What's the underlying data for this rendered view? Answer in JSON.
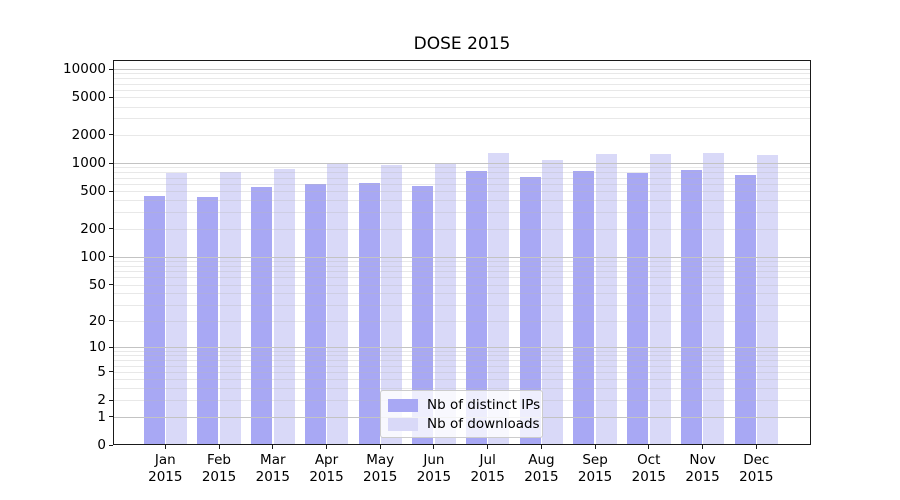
{
  "chart_data": {
    "type": "bar",
    "title": "DOSE 2015",
    "categories": [
      "Jan",
      "Feb",
      "Mar",
      "Apr",
      "May",
      "Jun",
      "Jul",
      "Aug",
      "Sep",
      "Oct",
      "Nov",
      "Dec"
    ],
    "category_year": "2015",
    "series": [
      {
        "name": "Nb of distinct IPs",
        "color": "#a8a8f4",
        "values": [
          445,
          440,
          550,
          600,
          620,
          575,
          820,
          710,
          825,
          790,
          850,
          740
        ]
      },
      {
        "name": "Nb of downloads",
        "color": "#d9d9f8",
        "values": [
          780,
          800,
          870,
          1000,
          950,
          975,
          1270,
          1090,
          1260,
          1240,
          1270,
          1220
        ]
      }
    ],
    "yscale": "symlog-log1p",
    "ylim": [
      0,
      12500
    ],
    "yticks": [
      0,
      1,
      2,
      5,
      10,
      20,
      50,
      100,
      200,
      500,
      1000,
      2000,
      5000,
      10000
    ],
    "grid": {
      "major": [
        1,
        10,
        100,
        1000,
        10000
      ],
      "minor_decades": [
        1,
        10,
        100,
        1000
      ],
      "minor_multipliers": [
        2,
        3,
        4,
        5,
        6,
        7,
        8,
        9
      ]
    },
    "legend": {
      "position": "lower center"
    }
  }
}
